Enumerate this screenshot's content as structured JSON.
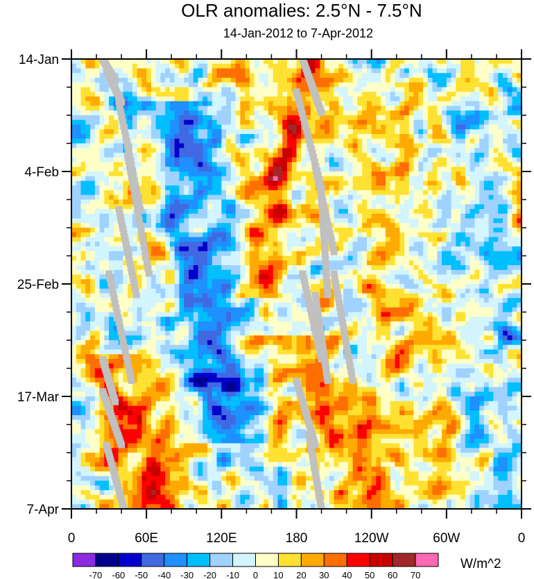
{
  "chart_data": {
    "type": "heatmap",
    "title": "OLR anomalies: 2.5°N - 7.5°N",
    "subtitle": "14-Jan-2012 to 7-Apr-2012",
    "x_ticks": [
      "0",
      "60E",
      "120E",
      "180",
      "120W",
      "60W",
      "0"
    ],
    "x_tick_values": [
      0,
      60,
      120,
      180,
      240,
      300,
      360
    ],
    "xlim": [
      0,
      360
    ],
    "y_ticks": [
      "14-Jan",
      "4-Feb",
      "25-Feb",
      "17-Mar",
      "7-Apr"
    ],
    "y_tick_days": [
      0,
      21,
      42,
      63,
      84
    ],
    "ylim": [
      0,
      84
    ],
    "colorbar": {
      "labels": [
        "-70",
        "-60",
        "-50",
        "-40",
        "-30",
        "-20",
        "-10",
        "0",
        "10",
        "20",
        "30",
        "40",
        "50",
        "60",
        "70"
      ],
      "colors": [
        "#8a2be2",
        "#00008b",
        "#0000cd",
        "#4169e1",
        "#1e90ff",
        "#00bfff",
        "#a0d2ff",
        "#d2f5ff",
        "#ffffc8",
        "#ffe132",
        "#ffaa00",
        "#ff6e00",
        "#ff0000",
        "#c80000",
        "#a02828",
        "#ff69b4"
      ],
      "units": "W/m^2"
    },
    "missing_color": "#c0c0c0",
    "features": [
      {
        "desc": "positive anomaly band",
        "lon_start": 185,
        "lon_end": 155,
        "day_start": 0,
        "day_end": 45
      },
      {
        "desc": "negative anomaly band",
        "lon_start": 95,
        "lon_end": 130,
        "day_start": 10,
        "day_end": 72
      },
      {
        "desc": "positive anomaly",
        "lon_start": 20,
        "lon_end": 80,
        "day_start": 58,
        "day_end": 84
      },
      {
        "desc": "positive anomaly band",
        "lon_start": 160,
        "lon_end": 260,
        "day_start": 55,
        "day_end": 84
      }
    ]
  }
}
